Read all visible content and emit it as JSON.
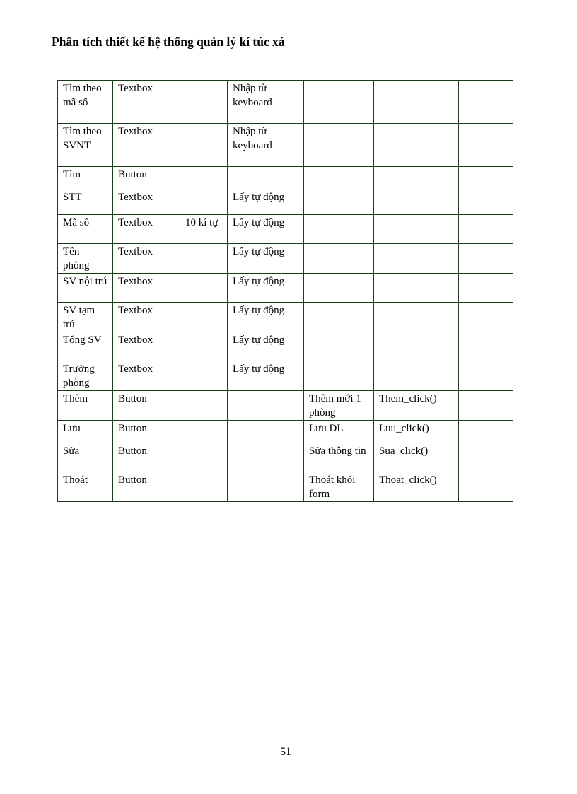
{
  "document": {
    "title": "Phân tích thiết kế hệ thống quản lý kí túc xá",
    "page_number": "51"
  },
  "table": {
    "rows": [
      [
        "Tìm theo mã số",
        "Textbox",
        "",
        "Nhập từ keyboard",
        "",
        "",
        ""
      ],
      [
        "Tìm theo SVNT",
        "Textbox",
        "",
        "Nhập từ keyboard",
        "",
        "",
        ""
      ],
      [
        "Tìm",
        "Button",
        "",
        "",
        "",
        "",
        ""
      ],
      [
        "STT",
        "Textbox",
        "",
        "Lấy tự động",
        "",
        "",
        ""
      ],
      [
        "Mã số",
        "Textbox",
        "10 kí tự",
        "Lấy tự động",
        "",
        "",
        ""
      ],
      [
        "Tên phòng",
        "Textbox",
        "",
        "Lấy tự động",
        "",
        "",
        ""
      ],
      [
        "SV nội trú",
        "Textbox",
        "",
        "Lấy tự động",
        "",
        "",
        ""
      ],
      [
        "SV tạm trú",
        "Textbox",
        "",
        "Lấy tự động",
        "",
        "",
        ""
      ],
      [
        "Tổng SV",
        "Textbox",
        "",
        "Lấy tự động",
        "",
        "",
        ""
      ],
      [
        "Trưởng phòng",
        "Textbox",
        "",
        "Lấy tự động",
        "",
        "",
        ""
      ],
      [
        "Thêm",
        "Button",
        "",
        "",
        "Thêm mới 1 phòng",
        "Them_click()",
        ""
      ],
      [
        "Lưu",
        "Button",
        "",
        "",
        "Lưu DL",
        "Luu_click()",
        ""
      ],
      [
        "Sửa",
        "Button",
        "",
        "",
        "Sửa thông tin",
        "Sua_click()",
        ""
      ],
      [
        "Thoát",
        "Button",
        "",
        "",
        "Thoát khỏi form",
        "Thoat_click()",
        ""
      ]
    ]
  }
}
